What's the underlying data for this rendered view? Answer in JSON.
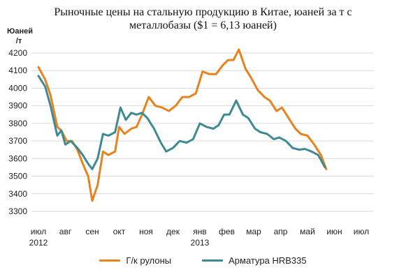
{
  "chart_data": {
    "type": "line",
    "title": [
      "Рыночные цены на стальную продукцию в Китае, юаней за т с",
      "металлобазы ($1 = 6,13 юаней)"
    ],
    "ylabel": [
      "Юаней",
      "/т"
    ],
    "xlabel": "",
    "ylim": [
      3300,
      4200
    ],
    "yticks": [
      3300,
      3400,
      3500,
      3600,
      3700,
      3800,
      3900,
      4000,
      4100,
      4200
    ],
    "grid": "horizontal",
    "legend_position": "bottom",
    "months": [
      "июл",
      "авг",
      "сен",
      "окт",
      "ноя",
      "дек",
      "янв",
      "фев",
      "мар",
      "апр",
      "май",
      "июн",
      "июл"
    ],
    "year_labels": [
      {
        "year": "2012",
        "month_index": 0
      },
      {
        "year": "2013",
        "month_index": 6
      }
    ],
    "x_unit": "month index (0 = июл 2012)",
    "series": [
      {
        "name": "Г/к рулоны",
        "color": "#E8821E",
        "points": [
          [
            0.0,
            4120
          ],
          [
            0.25,
            4050
          ],
          [
            0.45,
            3960
          ],
          [
            0.7,
            3780
          ],
          [
            0.85,
            3760
          ],
          [
            1.05,
            3700
          ],
          [
            1.25,
            3700
          ],
          [
            1.45,
            3650
          ],
          [
            1.65,
            3570
          ],
          [
            1.85,
            3500
          ],
          [
            2.0,
            3360
          ],
          [
            2.2,
            3450
          ],
          [
            2.4,
            3640
          ],
          [
            2.6,
            3620
          ],
          [
            2.85,
            3640
          ],
          [
            3.0,
            3780
          ],
          [
            3.2,
            3740
          ],
          [
            3.45,
            3770
          ],
          [
            3.65,
            3780
          ],
          [
            3.85,
            3850
          ],
          [
            4.1,
            3950
          ],
          [
            4.35,
            3900
          ],
          [
            4.6,
            3890
          ],
          [
            4.85,
            3870
          ],
          [
            5.1,
            3900
          ],
          [
            5.35,
            3950
          ],
          [
            5.6,
            3950
          ],
          [
            5.85,
            3970
          ],
          [
            6.1,
            4095
          ],
          [
            6.35,
            4080
          ],
          [
            6.6,
            4080
          ],
          [
            6.85,
            4130
          ],
          [
            7.05,
            4160
          ],
          [
            7.25,
            4160
          ],
          [
            7.45,
            4220
          ],
          [
            7.7,
            4110
          ],
          [
            7.9,
            4060
          ],
          [
            8.15,
            3990
          ],
          [
            8.4,
            3950
          ],
          [
            8.6,
            3930
          ],
          [
            8.85,
            3870
          ],
          [
            9.05,
            3890
          ],
          [
            9.3,
            3830
          ],
          [
            9.55,
            3770
          ],
          [
            9.75,
            3740
          ],
          [
            10.0,
            3730
          ],
          [
            10.25,
            3680
          ],
          [
            10.5,
            3620
          ],
          [
            10.7,
            3540
          ]
        ]
      },
      {
        "name": "Арматура HRB335",
        "color": "#3E8A93",
        "points": [
          [
            0.0,
            4070
          ],
          [
            0.25,
            4010
          ],
          [
            0.45,
            3900
          ],
          [
            0.7,
            3730
          ],
          [
            0.85,
            3760
          ],
          [
            1.0,
            3680
          ],
          [
            1.2,
            3700
          ],
          [
            1.45,
            3660
          ],
          [
            1.65,
            3620
          ],
          [
            1.85,
            3570
          ],
          [
            2.0,
            3540
          ],
          [
            2.2,
            3600
          ],
          [
            2.4,
            3740
          ],
          [
            2.6,
            3730
          ],
          [
            2.85,
            3750
          ],
          [
            3.05,
            3890
          ],
          [
            3.25,
            3820
          ],
          [
            3.45,
            3860
          ],
          [
            3.65,
            3850
          ],
          [
            3.85,
            3860
          ],
          [
            4.05,
            3830
          ],
          [
            4.3,
            3770
          ],
          [
            4.55,
            3690
          ],
          [
            4.75,
            3640
          ],
          [
            5.0,
            3660
          ],
          [
            5.25,
            3700
          ],
          [
            5.5,
            3690
          ],
          [
            5.75,
            3710
          ],
          [
            6.0,
            3800
          ],
          [
            6.25,
            3780
          ],
          [
            6.5,
            3770
          ],
          [
            6.7,
            3790
          ],
          [
            6.9,
            3850
          ],
          [
            7.1,
            3850
          ],
          [
            7.35,
            3930
          ],
          [
            7.6,
            3850
          ],
          [
            7.8,
            3830
          ],
          [
            8.05,
            3770
          ],
          [
            8.25,
            3750
          ],
          [
            8.5,
            3740
          ],
          [
            8.75,
            3710
          ],
          [
            8.95,
            3720
          ],
          [
            9.2,
            3700
          ],
          [
            9.45,
            3660
          ],
          [
            9.7,
            3650
          ],
          [
            9.9,
            3655
          ],
          [
            10.15,
            3640
          ],
          [
            10.4,
            3620
          ],
          [
            10.65,
            3550
          ]
        ]
      }
    ]
  }
}
